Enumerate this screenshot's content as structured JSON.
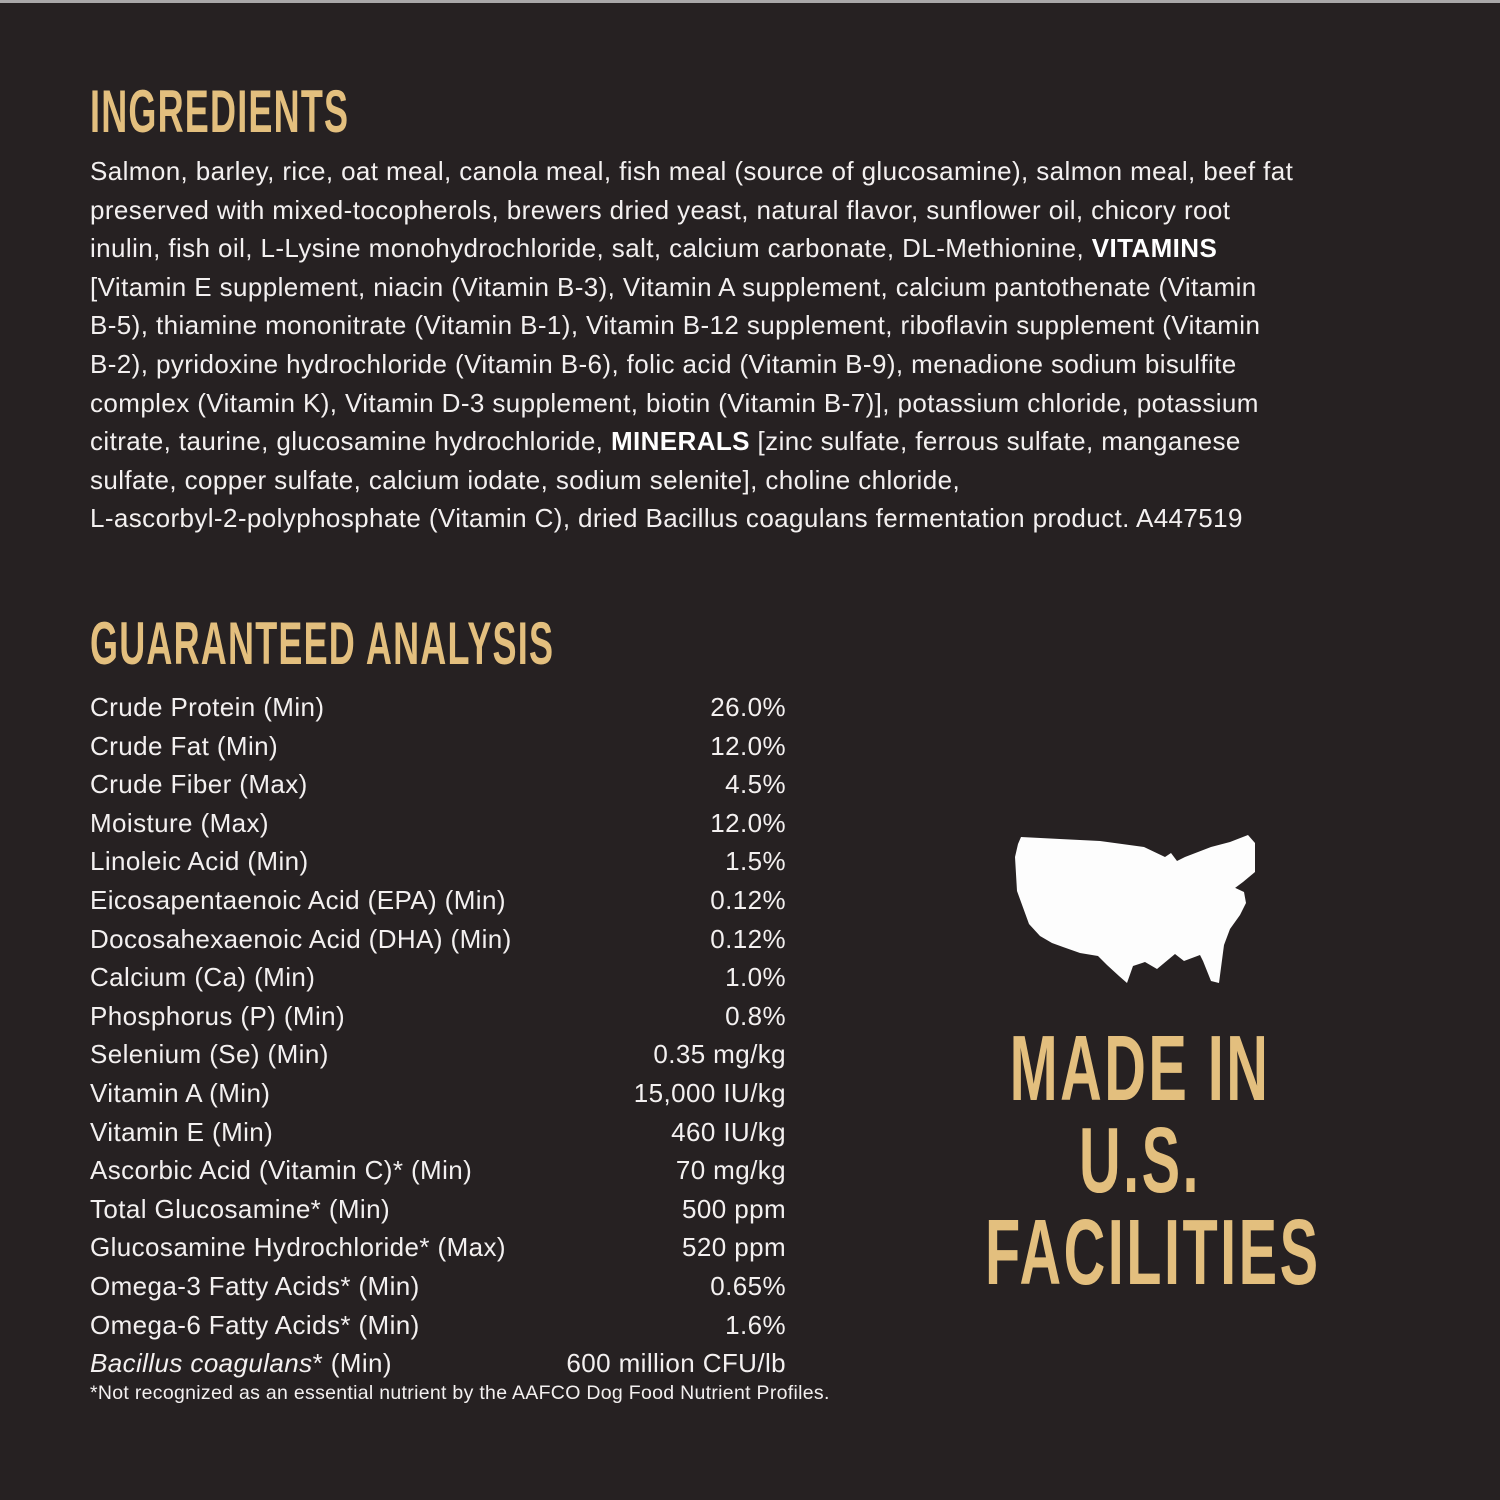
{
  "colors": {
    "background": "#262122",
    "accent_gold": "#e3bf7e",
    "text_white": "#f3f0f0",
    "map_white": "#fdfdfd",
    "top_edge_strip": "#aaa8a9"
  },
  "ingredients": {
    "heading": "INGREDIENTS",
    "lines": [
      [
        {
          "t": "Salmon, barley, rice, oat meal, canola meal, fish meal (source of glucosamine), salmon meal, beef fat"
        }
      ],
      [
        {
          "t": "preserved with mixed-tocopherols, brewers dried yeast, natural flavor, sunflower oil, chicory root"
        }
      ],
      [
        {
          "t": "inulin, fish oil, L-Lysine monohydrochloride, salt, calcium carbonate, DL-Methionine, "
        },
        {
          "t": "VITAMINS",
          "b": true
        }
      ],
      [
        {
          "t": "[Vitamin E supplement, niacin (Vitamin B-3), Vitamin A supplement, calcium pantothenate (Vitamin"
        }
      ],
      [
        {
          "t": "B-5), thiamine mononitrate (Vitamin B-1), Vitamin B-12 supplement, riboflavin supplement (Vitamin"
        }
      ],
      [
        {
          "t": "B-2), pyridoxine hydrochloride (Vitamin B-6), folic acid (Vitamin B-9), menadione sodium bisulfite"
        }
      ],
      [
        {
          "t": "complex (Vitamin K), Vitamin D-3 supplement, biotin (Vitamin B-7)], potassium chloride, potassium"
        }
      ],
      [
        {
          "t": "citrate, taurine, glucosamine hydrochloride, "
        },
        {
          "t": "MINERALS",
          "b": true
        },
        {
          "t": " [zinc sulfate, ferrous sulfate, manganese"
        }
      ],
      [
        {
          "t": "sulfate, copper sulfate, calcium iodate, sodium selenite], choline chloride,"
        }
      ],
      [
        {
          "t": "L-ascorbyl-2-polyphosphate (Vitamin C), dried Bacillus coagulans fermentation product. A447519"
        }
      ]
    ]
  },
  "analysis": {
    "heading": "GUARANTEED ANALYSIS",
    "rows": [
      {
        "label": [
          {
            "t": "Crude Protein (Min)"
          }
        ],
        "value": "26.0%"
      },
      {
        "label": [
          {
            "t": "Crude Fat (Min)"
          }
        ],
        "value": "12.0%"
      },
      {
        "label": [
          {
            "t": "Crude Fiber (Max)"
          }
        ],
        "value": "4.5%"
      },
      {
        "label": [
          {
            "t": "Moisture (Max)"
          }
        ],
        "value": "12.0%"
      },
      {
        "label": [
          {
            "t": "Linoleic Acid (Min)"
          }
        ],
        "value": "1.5%"
      },
      {
        "label": [
          {
            "t": "Eicosapentaenoic Acid (EPA) (Min)"
          }
        ],
        "value": "0.12%"
      },
      {
        "label": [
          {
            "t": "Docosahexaenoic Acid (DHA) (Min)"
          }
        ],
        "value": "0.12%"
      },
      {
        "label": [
          {
            "t": "Calcium (Ca) (Min)"
          }
        ],
        "value": "1.0%"
      },
      {
        "label": [
          {
            "t": "Phosphorus (P) (Min)"
          }
        ],
        "value": "0.8%"
      },
      {
        "label": [
          {
            "t": "Selenium (Se) (Min)"
          }
        ],
        "value": "0.35 mg/kg"
      },
      {
        "label": [
          {
            "t": "Vitamin A (Min)"
          }
        ],
        "value": "15,000 IU/kg"
      },
      {
        "label": [
          {
            "t": "Vitamin E (Min)"
          }
        ],
        "value": "460 IU/kg"
      },
      {
        "label": [
          {
            "t": "Ascorbic Acid (Vitamin C)* (Min)"
          }
        ],
        "value": "70 mg/kg"
      },
      {
        "label": [
          {
            "t": "Total Glucosamine* (Min)"
          }
        ],
        "value": "500 ppm"
      },
      {
        "label": [
          {
            "t": "Glucosamine Hydrochloride* (Max)"
          }
        ],
        "value": "520 ppm"
      },
      {
        "label": [
          {
            "t": "Omega-3 Fatty Acids* (Min)"
          }
        ],
        "value": "0.65%"
      },
      {
        "label": [
          {
            "t": "Omega-6 Fatty Acids* (Min)"
          }
        ],
        "value": "1.6%"
      },
      {
        "label": [
          {
            "t": "Bacillus coagulans",
            "i": true
          },
          {
            "t": "* (Min)"
          }
        ],
        "value": "600 million CFU/lb"
      }
    ],
    "footnote": "*Not recognized as an essential nutrient by the AAFCO Dog Food Nutrient Profiles."
  },
  "made_in": {
    "lines": [
      "MADE IN",
      "U.S.",
      "FACILITIES"
    ]
  }
}
